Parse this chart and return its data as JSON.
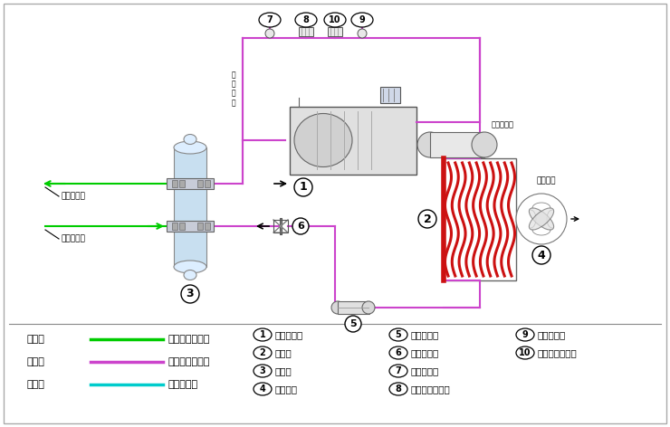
{
  "bg_color": "#ffffff",
  "magenta_color": "#cc44cc",
  "green_color": "#00cc00",
  "cyan_color": "#00cccc",
  "red_color": "#cc1111",
  "blue_light": "#c8dff0",
  "black": "#000000",
  "legend_items": [
    {
      "text": "绿色线",
      "line_color": "#00cc00",
      "desc": "载冷剂循环回路"
    },
    {
      "text": "红色线",
      "line_color": "#cc44cc",
      "desc": "制冷剂循环回路"
    },
    {
      "text": "蓝色线",
      "line_color": "#00cccc",
      "desc": "水循环回路"
    }
  ],
  "component_labels": [
    {
      "num": "1",
      "text": "螺杆压缩机"
    },
    {
      "num": "2",
      "text": "冷凝器"
    },
    {
      "num": "3",
      "text": "蒸发器"
    },
    {
      "num": "4",
      "text": "冷却风扇"
    },
    {
      "num": "5",
      "text": "干燥过滤器"
    },
    {
      "num": "6",
      "text": "供液膨胀阀"
    },
    {
      "num": "7",
      "text": "低压压力表"
    },
    {
      "num": "8",
      "text": "低压压力控制器"
    },
    {
      "num": "9",
      "text": "高压压力表"
    },
    {
      "num": "10",
      "text": "高压压力控制器"
    }
  ]
}
